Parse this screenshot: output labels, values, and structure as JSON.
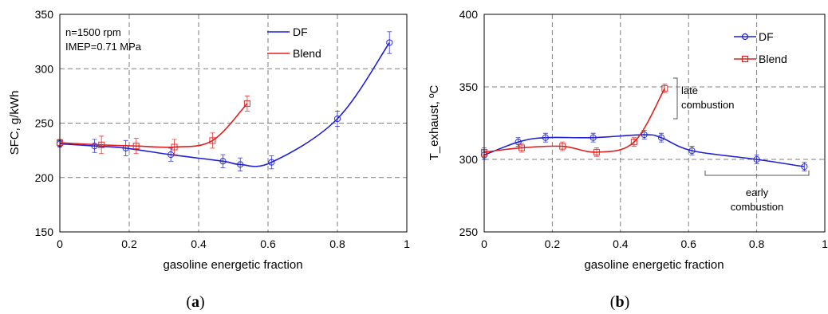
{
  "colors": {
    "DF": "#1f1fd6",
    "Blend": "#e02020",
    "grid": "#7f7f7f",
    "axis": "#000000"
  },
  "chart_data": [
    {
      "type": "line",
      "panel_caption": "a",
      "xlabel": "gasoline energetic fraction",
      "ylabel": "SFC, g/kWh",
      "xlim": [
        0,
        1
      ],
      "ylim": [
        150,
        350
      ],
      "xticks": [
        "0",
        "0.2",
        "0.4",
        "0.6",
        "0.8",
        "1"
      ],
      "yticks": [
        "150",
        "200",
        "250",
        "300",
        "350"
      ],
      "grid": true,
      "legend_position": "top-right",
      "annotations": [
        "n=1500 rpm",
        "IMEP=0.71 MPa"
      ],
      "series": [
        {
          "name": "DF",
          "marker": "circle",
          "x": [
            0,
            0.1,
            0.19,
            0.32,
            0.47,
            0.52,
            0.61,
            0.8,
            0.95
          ],
          "y": [
            231,
            229,
            227,
            221,
            215,
            212,
            214,
            254,
            324
          ],
          "err": [
            3,
            6,
            7,
            6,
            6,
            6,
            6,
            7,
            10
          ]
        },
        {
          "name": "Blend",
          "marker": "square",
          "x": [
            0,
            0.12,
            0.22,
            0.33,
            0.44,
            0.54
          ],
          "y": [
            232,
            230,
            229,
            228,
            234,
            268
          ],
          "err": [
            3,
            8,
            7,
            7,
            7,
            7
          ]
        }
      ]
    },
    {
      "type": "line",
      "panel_caption": "b",
      "xlabel": "gasoline energetic fraction",
      "ylabel": "T_exhaust, ºC",
      "xlim": [
        0,
        1
      ],
      "ylim": [
        250,
        400
      ],
      "xticks": [
        "0",
        "0.2",
        "0.4",
        "0.6",
        "0.8",
        "1"
      ],
      "yticks": [
        "250",
        "300",
        "350",
        "400"
      ],
      "grid": true,
      "legend_position": "top-right",
      "annotations": [
        "late\ncombustion",
        "early\ncombustion"
      ],
      "series": [
        {
          "name": "DF",
          "marker": "circle",
          "x": [
            0,
            0.1,
            0.18,
            0.32,
            0.47,
            0.52,
            0.61,
            0.8,
            0.94
          ],
          "y": [
            303,
            312,
            315,
            315,
            317,
            315,
            306,
            300,
            295
          ],
          "err": [
            3,
            3,
            3,
            3,
            3,
            3,
            3,
            3,
            3
          ]
        },
        {
          "name": "Blend",
          "marker": "square",
          "x": [
            0,
            0.11,
            0.23,
            0.33,
            0.44,
            0.53
          ],
          "y": [
            305,
            308,
            309,
            305,
            312,
            349
          ],
          "err": [
            3,
            3,
            3,
            3,
            3,
            3
          ]
        }
      ]
    }
  ]
}
